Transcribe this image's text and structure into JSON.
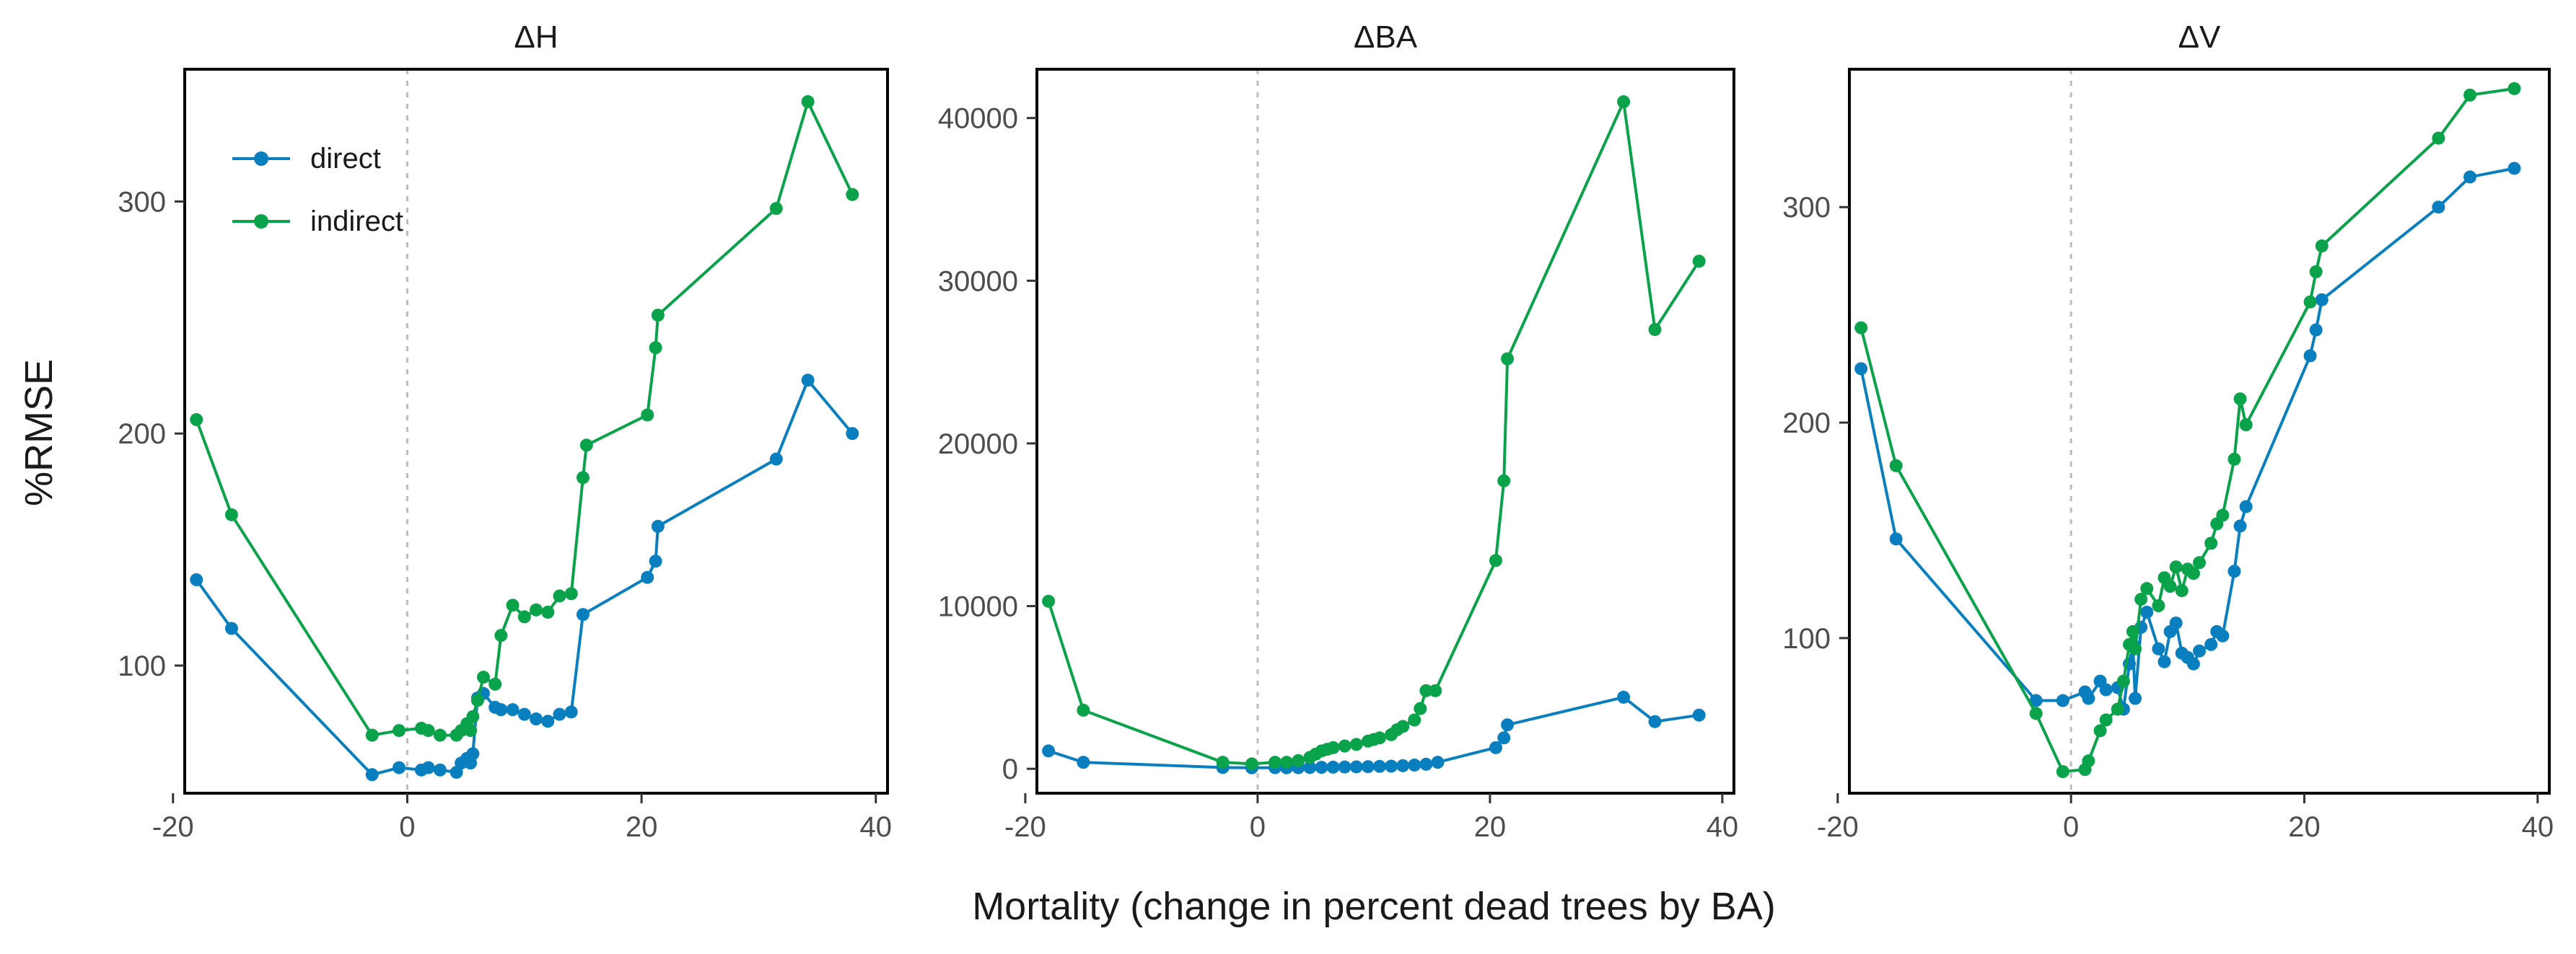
{
  "figure": {
    "xlabel": "Mortality (change in percent dead trees by BA)",
    "ylabel": "%RMSE"
  },
  "colors": {
    "direct": "#0a7fc0",
    "indirect": "#0aa24a",
    "zero_line": "#bdbdbd",
    "frame": "#000000"
  },
  "chart_data": [
    {
      "type": "line",
      "title": "ΔH",
      "xlabel": "Mortality (change in percent dead trees by BA)",
      "ylabel": "%RMSE",
      "xlim": [
        -19,
        41
      ],
      "ylim": [
        45,
        357
      ],
      "x_ticks": [
        -20,
        0,
        20,
        40
      ],
      "y_ticks": [
        100,
        200,
        300
      ],
      "zero_line": true,
      "grid": false,
      "legend": "top-left",
      "series": [
        {
          "name": "direct",
          "x": [
            -18,
            -15,
            -3,
            -0.7,
            1.2,
            1.8,
            2.8,
            4.2,
            4.6,
            5.1,
            5.4,
            5.6,
            6,
            6.5,
            7.5,
            8,
            9,
            10,
            11,
            12,
            13,
            14,
            15,
            20.5,
            21.2,
            21.4,
            31.5,
            34.2,
            38
          ],
          "y": [
            137,
            116,
            53,
            56,
            55,
            56,
            55,
            54,
            58,
            60,
            58,
            62,
            86,
            88,
            82,
            81,
            81,
            79,
            77,
            76,
            79,
            80,
            122,
            138,
            145,
            160,
            189,
            223,
            200
          ]
        },
        {
          "name": "indirect",
          "x": [
            -18,
            -15,
            -3,
            -0.7,
            1.2,
            1.8,
            2.8,
            4.2,
            4.6,
            5.1,
            5.4,
            5.6,
            6,
            6.5,
            7.5,
            8,
            9,
            10,
            11,
            12,
            13,
            14,
            15,
            15.3,
            20.5,
            21.2,
            21.4,
            31.5,
            34.2,
            38
          ],
          "y": [
            206,
            165,
            70,
            72,
            73,
            72,
            70,
            70,
            72,
            75,
            72,
            78,
            85,
            95,
            92,
            113,
            126,
            121,
            124,
            123,
            130,
            131,
            181,
            195,
            208,
            237,
            251,
            297,
            343,
            303
          ]
        }
      ]
    },
    {
      "type": "line",
      "title": "ΔBA",
      "xlim": [
        -19,
        41
      ],
      "ylim": [
        -1500,
        43000
      ],
      "x_ticks": [
        -20,
        0,
        20,
        40
      ],
      "y_ticks": [
        0,
        10000,
        20000,
        30000,
        40000
      ],
      "zero_line": true,
      "grid": false,
      "series": [
        {
          "name": "direct",
          "x": [
            -18,
            -15,
            -3,
            -0.5,
            1.5,
            2.5,
            3.5,
            4.5,
            5.5,
            6.5,
            7.5,
            8.5,
            9.5,
            10.5,
            11.5,
            12.5,
            13.5,
            14.5,
            15.5,
            20.5,
            21.2,
            21.5,
            31.5,
            34.2,
            38
          ],
          "y": [
            1100,
            400,
            80,
            60,
            70,
            60,
            70,
            80,
            90,
            100,
            110,
            120,
            130,
            150,
            160,
            190,
            230,
            280,
            400,
            1300,
            1900,
            2700,
            4400,
            2900,
            3300
          ]
        },
        {
          "name": "indirect",
          "x": [
            -18,
            -15,
            -3,
            -0.5,
            1.5,
            2.5,
            3.5,
            4.5,
            5,
            5.5,
            6,
            6.5,
            7.5,
            8.5,
            9.5,
            10,
            10.5,
            11.5,
            12,
            12.5,
            13.5,
            14,
            14.5,
            15.3,
            20.5,
            21.2,
            21.5,
            31.5,
            34.2,
            38
          ],
          "y": [
            10300,
            3600,
            400,
            300,
            400,
            400,
            500,
            700,
            900,
            1100,
            1200,
            1300,
            1400,
            1500,
            1700,
            1800,
            1900,
            2100,
            2400,
            2600,
            3000,
            3700,
            4800,
            4800,
            12800,
            17700,
            25200,
            41000,
            27000,
            31200
          ]
        }
      ]
    },
    {
      "type": "line",
      "title": "ΔV",
      "xlim": [
        -19,
        41
      ],
      "ylim": [
        28,
        364
      ],
      "x_ticks": [
        -20,
        0,
        20,
        40
      ],
      "y_ticks": [
        100,
        200,
        300
      ],
      "zero_line": true,
      "grid": false,
      "series": [
        {
          "name": "direct",
          "x": [
            -18,
            -15,
            -3,
            -0.7,
            1.2,
            1.5,
            2.5,
            3,
            4,
            4.5,
            5,
            5.3,
            5.5,
            6,
            6.5,
            7.5,
            8,
            8.5,
            9,
            9.5,
            10,
            10.5,
            11,
            12,
            12.5,
            13,
            14,
            14.5,
            15,
            20.5,
            21,
            21.5,
            31.5,
            34.2,
            38
          ],
          "y": [
            225,
            146,
            71,
            71,
            75,
            72,
            80,
            76,
            77,
            67,
            88,
            97,
            72,
            105,
            112,
            95,
            89,
            103,
            107,
            93,
            91,
            88,
            94,
            97,
            103,
            101,
            131,
            152,
            161,
            231,
            243,
            257,
            300,
            314,
            318
          ]
        },
        {
          "name": "indirect",
          "x": [
            -18,
            -15,
            -3,
            -0.7,
            1.2,
            1.5,
            2.5,
            3,
            4,
            4.5,
            5,
            5.3,
            5.5,
            6,
            6.5,
            7.5,
            8,
            8.5,
            9,
            9.5,
            10,
            10.5,
            11,
            12,
            12.5,
            13,
            14,
            14.5,
            15,
            20.5,
            21,
            21.5,
            31.5,
            34.2,
            38
          ],
          "y": [
            244,
            180,
            65,
            38,
            39,
            43,
            57,
            62,
            67,
            80,
            97,
            103,
            95,
            118,
            123,
            115,
            128,
            124,
            133,
            122,
            132,
            130,
            135,
            144,
            153,
            157,
            183,
            211,
            199,
            256,
            270,
            282,
            332,
            352,
            355
          ]
        }
      ]
    }
  ]
}
